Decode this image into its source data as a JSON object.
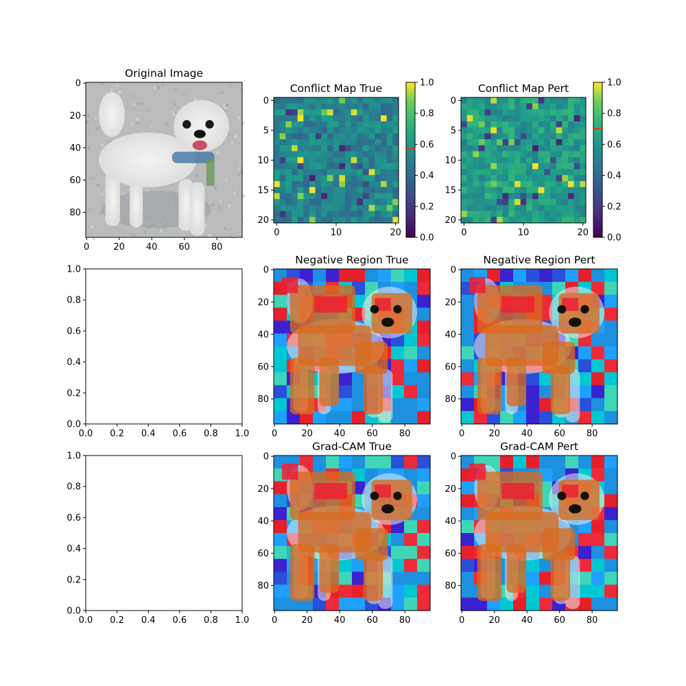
{
  "chart_data": [
    {
      "id": "p1",
      "type": "image",
      "title": "Original Image",
      "xticks": [
        0,
        20,
        40,
        60,
        80
      ],
      "yticks": [
        0,
        20,
        40,
        60,
        80
      ],
      "xlim": [
        0,
        96
      ],
      "ylim": [
        96,
        0
      ],
      "colormap": "rgb",
      "content": "photo"
    },
    {
      "id": "p2",
      "type": "heatmap",
      "title": "Conflict Map True",
      "xticks": [
        0,
        10,
        20
      ],
      "yticks": [
        0,
        5,
        10,
        15,
        20
      ],
      "grid_size": 21,
      "colorbar": {
        "colormap": "viridis",
        "range": [
          0,
          1
        ],
        "ticks": [
          "0.0",
          "0.2",
          "0.4",
          "0.6",
          "0.8",
          "1.0"
        ],
        "marker_value": 0.57,
        "marker_color": "#ff2a00"
      }
    },
    {
      "id": "p3",
      "type": "heatmap",
      "title": "Conflict Map Pert",
      "xticks": [
        0,
        10,
        20
      ],
      "yticks": [
        0,
        5,
        10,
        15,
        20
      ],
      "grid_size": 21,
      "colorbar": {
        "colormap": "viridis",
        "range": [
          0,
          1
        ],
        "ticks": [
          "0.0",
          "0.2",
          "0.4",
          "0.6",
          "0.8",
          "1.0"
        ],
        "marker_value": 0.7,
        "marker_color": "#ff2a00"
      }
    },
    {
      "id": "p4",
      "type": "empty",
      "title": "",
      "xticks": [
        "0.0",
        "0.2",
        "0.4",
        "0.6",
        "0.8",
        "1.0"
      ],
      "yticks": [
        "0.0",
        "0.2",
        "0.4",
        "0.6",
        "0.8",
        "1.0"
      ],
      "xlim": [
        0,
        1
      ],
      "ylim": [
        0,
        1
      ]
    },
    {
      "id": "p5",
      "type": "image",
      "title": "Negative Region True",
      "xticks": [
        0,
        20,
        40,
        60,
        80
      ],
      "yticks": [
        0,
        20,
        40,
        60,
        80
      ],
      "xlim": [
        0,
        96
      ],
      "ylim": [
        96,
        0
      ],
      "colormap": "overlay"
    },
    {
      "id": "p6",
      "type": "image",
      "title": "Negative Region Pert",
      "xticks": [
        0,
        20,
        40,
        60,
        80
      ],
      "yticks": [
        0,
        20,
        40,
        60,
        80
      ],
      "xlim": [
        0,
        96
      ],
      "ylim": [
        96,
        0
      ],
      "colormap": "overlay"
    },
    {
      "id": "p7",
      "type": "empty",
      "title": "",
      "xticks": [
        "0.0",
        "0.2",
        "0.4",
        "0.6",
        "0.8",
        "1.0"
      ],
      "yticks": [
        "0.0",
        "0.2",
        "0.4",
        "0.6",
        "0.8",
        "1.0"
      ],
      "xlim": [
        0,
        1
      ],
      "ylim": [
        0,
        1
      ]
    },
    {
      "id": "p8",
      "type": "image",
      "title": "Grad-CAM True",
      "xticks": [
        0,
        20,
        40,
        60,
        80
      ],
      "yticks": [
        0,
        20,
        40,
        60,
        80
      ],
      "xlim": [
        0,
        96
      ],
      "ylim": [
        96,
        0
      ],
      "colormap": "overlay"
    },
    {
      "id": "p9",
      "type": "image",
      "title": "Grad-CAM Pert",
      "xticks": [
        0,
        20,
        40,
        60,
        80
      ],
      "yticks": [
        0,
        20,
        40,
        60,
        80
      ],
      "xlim": [
        0,
        96
      ],
      "ylim": [
        96,
        0
      ],
      "colormap": "overlay"
    }
  ]
}
